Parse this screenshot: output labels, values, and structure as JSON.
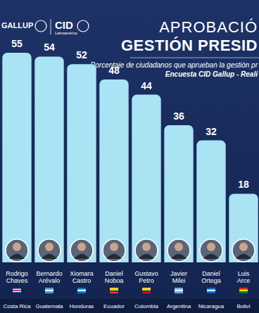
{
  "chart_data": {
    "type": "bar",
    "title": [
      "APROBACIÓ",
      "GESTIÓN PRESID"
    ],
    "subtitle": [
      "Porcentaje de ciudadanos que aprueban la gestión pr",
      "Encuesta CID Gallup - Reali"
    ],
    "annotations": [
      "GALLUP",
      "CID",
      "Latinoamérica"
    ],
    "categories": [
      "Rodrigo Chaves",
      "Bernardo Arévalo",
      "Xiomara Castro",
      "Daniel Noboa",
      "Gustavo Petro",
      "Javier Milei",
      "Daniel Ortega",
      "Luis Arce"
    ],
    "countries": [
      "Costa Rica",
      "Guatemala",
      "Honduras",
      "Ecuador",
      "Colombia",
      "Argentina",
      "Nicaragua",
      "Bolivi"
    ],
    "values": [
      55,
      54,
      52,
      48,
      44,
      36,
      32,
      18
    ],
    "color": "#a9e3f4",
    "ylim": [
      0,
      55
    ],
    "data_labels": true,
    "tick_labels": false,
    "grid": false
  }
}
